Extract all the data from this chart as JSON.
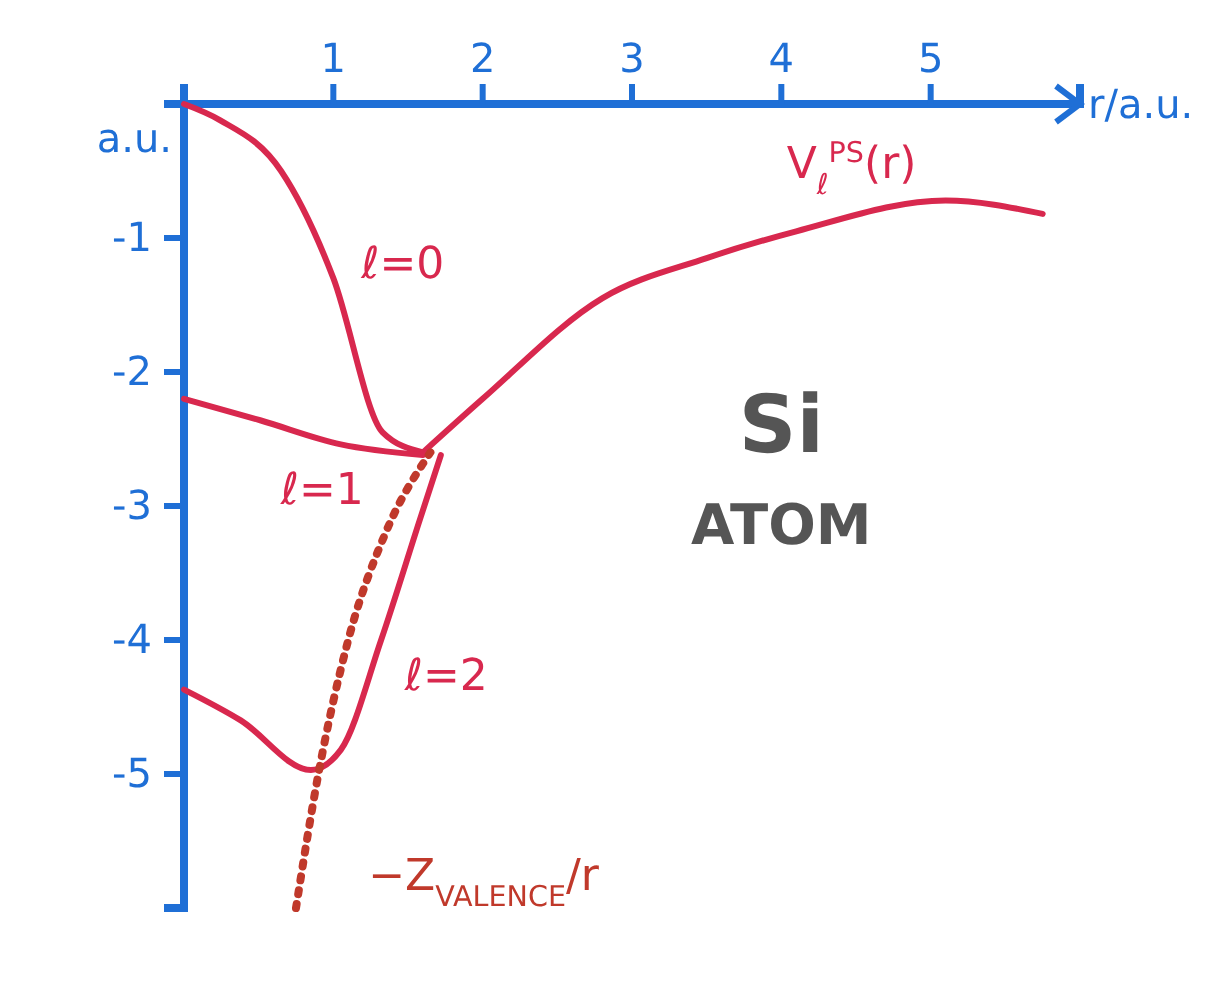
{
  "chart_data": {
    "type": "line",
    "xlabel": "r/a.u.",
    "ylabel": "a.u.",
    "xlim": [
      0,
      6
    ],
    "ylim": [
      -6,
      0
    ],
    "xticks": [
      1,
      2,
      3,
      4,
      5
    ],
    "yticks": [
      -1,
      -2,
      -3,
      -4,
      -5
    ],
    "grid": false,
    "marker": "none",
    "line_style": "solid",
    "annotations": [
      "Si",
      "ATOM"
    ],
    "series": [
      {
        "name": "ℓ=0",
        "color": "#d8284e",
        "x": [
          0,
          0.24,
          0.65,
          1,
          1.33,
          1.6
        ],
        "values": [
          0,
          -0.12,
          -0.5,
          -1.3,
          -2.45,
          -2.6
        ]
      },
      {
        "name": "ℓ=1",
        "color": "#d8284e",
        "x": [
          0,
          0.51,
          1.05,
          1.6
        ],
        "values": [
          -2.2,
          -2.36,
          -2.54,
          -2.62
        ]
      },
      {
        "name": "ℓ=2",
        "color": "#d8284e",
        "x": [
          0,
          0.38,
          0.85,
          1.05,
          1.32,
          1.58,
          1.72
        ],
        "values": [
          -4.37,
          -4.6,
          -4.97,
          -4.82,
          -4,
          -3.1,
          -2.62
        ]
      },
      {
        "name": "V$_{ℓ}$$^{PS}$(r)",
        "color": "#d8284e",
        "x": [
          1.6,
          2,
          2.8,
          3.5,
          4.1,
          5.1,
          5.75
        ],
        "values": [
          -2.6,
          -2.2,
          -1.45,
          -1.15,
          -0.95,
          -0.72,
          -0.82
        ]
      },
      {
        "name": "−Z$_{VALENCE}$/r",
        "color": "#c0392b",
        "line_style": "dotted",
        "x": [
          0.75,
          0.9,
          1.1,
          1.35,
          1.65
        ],
        "values": [
          -6,
          -5,
          -4,
          -3.2,
          -2.6
        ]
      }
    ]
  }
}
